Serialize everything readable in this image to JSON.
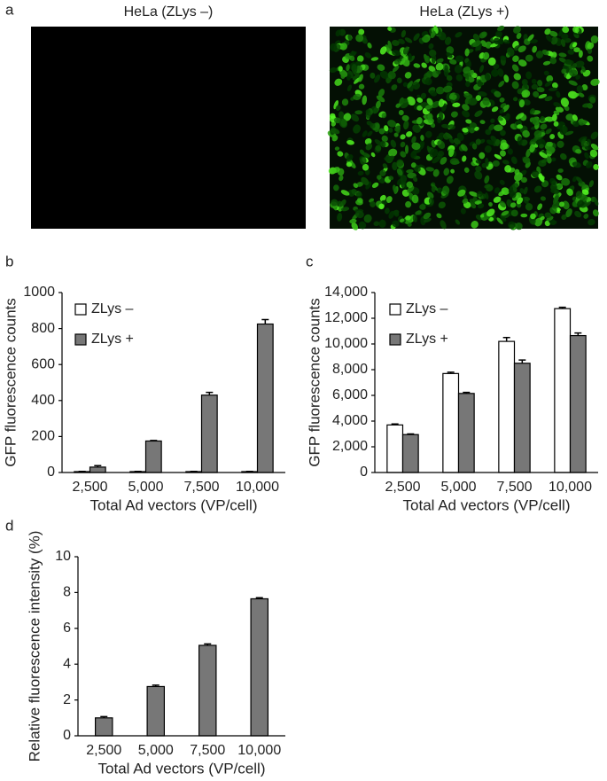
{
  "panel_a": {
    "panel_label": "a",
    "titles": [
      "HeLa (ZLys –)",
      "HeLa (ZLys +)"
    ]
  },
  "chart_data": [
    {
      "type": "bar",
      "panel_label": "b",
      "y_label": "GFP fluorescence counts",
      "x_label": "Total Ad vectors (VP/cell)",
      "categories": [
        "2,500",
        "5,000",
        "7,500",
        "10,000"
      ],
      "series": [
        {
          "name": "ZLys –",
          "color": "#ffffff",
          "values": [
            5,
            5,
            5,
            5
          ],
          "errors": [
            1,
            1,
            1,
            1
          ]
        },
        {
          "name": "ZLys +",
          "color": "#777777",
          "values": [
            30,
            175,
            430,
            825
          ],
          "errors": [
            8,
            3,
            15,
            25
          ]
        }
      ],
      "ylim": [
        0,
        1000
      ],
      "yticks": [
        0,
        200,
        400,
        600,
        800,
        1000
      ],
      "legend": "top-left"
    },
    {
      "type": "bar",
      "panel_label": "c",
      "y_label": "GFP fluorescence counts",
      "x_label": "Total Ad vectors (VP/cell)",
      "categories": [
        "2,500",
        "5,000",
        "7,500",
        "10,000"
      ],
      "series": [
        {
          "name": "ZLys –",
          "color": "#ffffff",
          "values": [
            3700,
            7700,
            10200,
            12750
          ],
          "errors": [
            80,
            100,
            300,
            100
          ]
        },
        {
          "name": "ZLys +",
          "color": "#777777",
          "values": [
            2950,
            6150,
            8500,
            10650
          ],
          "errors": [
            50,
            80,
            250,
            200
          ]
        }
      ],
      "ylim": [
        0,
        14000
      ],
      "yticks": [
        0,
        {
          "value": 2000,
          "label": "2,000"
        },
        {
          "value": 4000,
          "label": "4,000"
        },
        {
          "value": 6000,
          "label": "6,000"
        },
        {
          "value": 8000,
          "label": "8,000"
        },
        {
          "value": 10000,
          "label": "10,000"
        },
        {
          "value": 12000,
          "label": "12,000"
        },
        {
          "value": 14000,
          "label": "14,000"
        }
      ],
      "legend": "top-left"
    },
    {
      "type": "bar",
      "panel_label": "d",
      "y_label": "Relative fluorescence intensity (%)",
      "x_label": "Total Ad vectors (VP/cell)",
      "categories": [
        "2,500",
        "5,000",
        "7,500",
        "10,000"
      ],
      "series": [
        {
          "color": "#777777",
          "values": [
            1.0,
            2.75,
            5.05,
            7.65
          ],
          "errors": [
            0.07,
            0.08,
            0.08,
            0.06
          ]
        }
      ],
      "ylim": [
        0,
        10
      ],
      "yticks": [
        0,
        2,
        4,
        6,
        8,
        10
      ]
    }
  ]
}
